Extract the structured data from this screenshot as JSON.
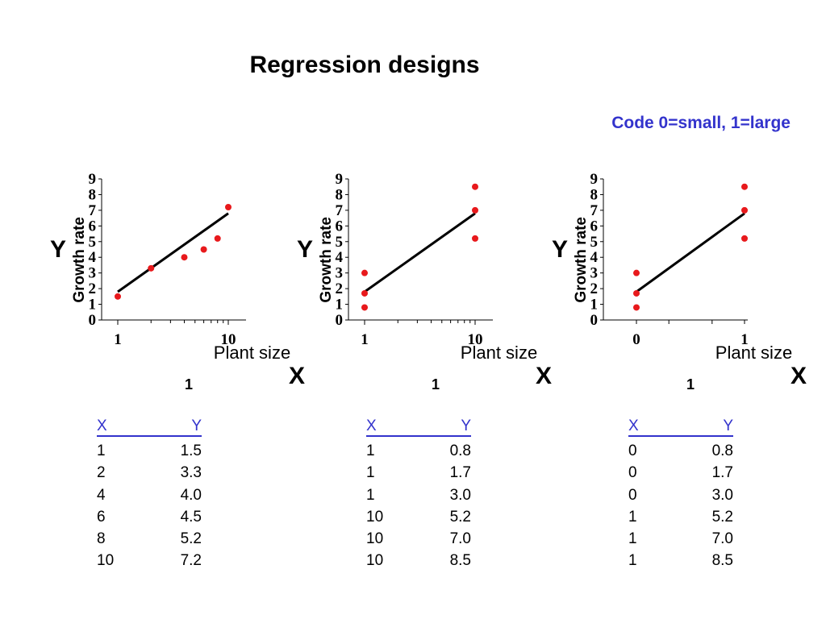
{
  "title": "Regression designs",
  "code_note": "Code 0=small, 1=large",
  "colors": {
    "point": "#e8191c",
    "line": "#000000",
    "note": "#3333cc",
    "table_header": "#3333cc"
  },
  "chart_data": [
    {
      "type": "scatter",
      "ylabel": "Growth rate",
      "y_symbol": "Y",
      "xlabel": "Plant size",
      "x_symbol": "X",
      "x_subscript": "1",
      "x_scale": "log",
      "ylim": [
        0,
        9
      ],
      "yticks": [
        "0",
        "1",
        "2",
        "3",
        "4",
        "5",
        "6",
        "7",
        "8",
        "9"
      ],
      "xticks": [
        {
          "value": 1,
          "label": "1"
        },
        {
          "value": 10,
          "label": "10"
        }
      ],
      "points": [
        {
          "x": 1,
          "y": 1.5
        },
        {
          "x": 2,
          "y": 3.3
        },
        {
          "x": 4,
          "y": 4.0
        },
        {
          "x": 6,
          "y": 4.5
        },
        {
          "x": 8,
          "y": 5.2
        },
        {
          "x": 10,
          "y": 7.2
        }
      ],
      "regression_line": {
        "x1": 1,
        "y1": 1.8,
        "x2": 10,
        "y2": 6.8
      },
      "table": {
        "header_x": "X",
        "header_y": "Y",
        "rows": [
          [
            "1",
            "1.5"
          ],
          [
            "2",
            "3.3"
          ],
          [
            "4",
            "4.0"
          ],
          [
            "6",
            "4.5"
          ],
          [
            "8",
            "5.2"
          ],
          [
            "10",
            "7.2"
          ]
        ]
      }
    },
    {
      "type": "scatter",
      "ylabel": "Growth rate",
      "y_symbol": "Y",
      "xlabel": "Plant size",
      "x_symbol": "X",
      "x_subscript": "1",
      "x_scale": "log",
      "ylim": [
        0,
        9
      ],
      "yticks": [
        "0",
        "1",
        "2",
        "3",
        "4",
        "5",
        "6",
        "7",
        "8",
        "9"
      ],
      "xticks": [
        {
          "value": 1,
          "label": "1"
        },
        {
          "value": 10,
          "label": "10"
        }
      ],
      "points": [
        {
          "x": 1,
          "y": 0.8
        },
        {
          "x": 1,
          "y": 1.7
        },
        {
          "x": 1,
          "y": 3.0
        },
        {
          "x": 10,
          "y": 5.2
        },
        {
          "x": 10,
          "y": 7.0
        },
        {
          "x": 10,
          "y": 8.5
        }
      ],
      "regression_line": {
        "x1": 1,
        "y1": 1.8,
        "x2": 10,
        "y2": 6.8
      },
      "table": {
        "header_x": "X",
        "header_y": "Y",
        "rows": [
          [
            "1",
            "0.8"
          ],
          [
            "1",
            "1.7"
          ],
          [
            "1",
            "3.0"
          ],
          [
            "10",
            "5.2"
          ],
          [
            "10",
            "7.0"
          ],
          [
            "10",
            "8.5"
          ]
        ]
      }
    },
    {
      "type": "scatter",
      "ylabel": "Growth rate",
      "y_symbol": "Y",
      "xlabel": "Plant size",
      "x_symbol": "X",
      "x_subscript": "1",
      "x_scale": "linear",
      "ylim": [
        0,
        9
      ],
      "yticks": [
        "0",
        "1",
        "2",
        "3",
        "4",
        "5",
        "6",
        "7",
        "8",
        "9"
      ],
      "xticks": [
        {
          "value": 0,
          "label": "0"
        },
        {
          "value": 1,
          "label": "1"
        }
      ],
      "points": [
        {
          "x": 0,
          "y": 0.8
        },
        {
          "x": 0,
          "y": 1.7
        },
        {
          "x": 0,
          "y": 3.0
        },
        {
          "x": 1,
          "y": 5.2
        },
        {
          "x": 1,
          "y": 7.0
        },
        {
          "x": 1,
          "y": 8.5
        }
      ],
      "regression_line": {
        "x1": 0,
        "y1": 1.8,
        "x2": 1,
        "y2": 6.8
      },
      "table": {
        "header_x": "X",
        "header_y": "Y",
        "rows": [
          [
            "0",
            "0.8"
          ],
          [
            "0",
            "1.7"
          ],
          [
            "0",
            "3.0"
          ],
          [
            "1",
            "5.2"
          ],
          [
            "1",
            "7.0"
          ],
          [
            "1",
            "8.5"
          ]
        ]
      }
    }
  ]
}
